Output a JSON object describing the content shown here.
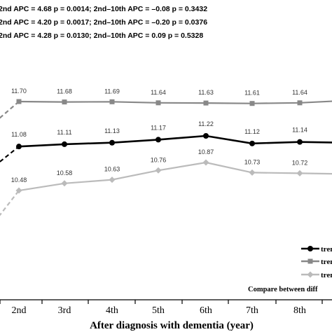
{
  "chart_data": {
    "type": "line",
    "stats_lines": [
      "2nd  APC = 4.68  p = 0.0014; 2nd–10th  APC = –0.08   p = 0.3432",
      "2nd  APC = 4.20  p = 0.0017; 2nd–10th  APC = –0.20   p = 0.0376",
      "2nd  APC = 4.28  p = 0.0130; 2nd–10th  APC = 0.09    p = 0.5328"
    ],
    "categories": [
      "2nd",
      "3rd",
      "4th",
      "5th",
      "6th",
      "7th",
      "8th"
    ],
    "xlabel": "After diagnosis with dementia (year)",
    "series": [
      {
        "name": "tren",
        "color": "#888888",
        "marker": "square",
        "values": [
          11.7,
          11.68,
          11.69,
          11.64,
          11.63,
          11.61,
          11.64
        ],
        "labels": [
          "11.70",
          "11.68",
          "11.69",
          "11.64",
          "11.63",
          "11.61",
          "11.64"
        ]
      },
      {
        "name": "tren",
        "color": "#000000",
        "marker": "circle",
        "values": [
          11.08,
          11.11,
          11.13,
          11.17,
          11.22,
          11.12,
          11.14
        ],
        "labels": [
          "11.08",
          "11.11",
          "11.13",
          "11.17",
          "11.22",
          "11.12",
          "11.14"
        ]
      },
      {
        "name": "tren",
        "color": "#bbbbbb",
        "marker": "diamond",
        "values": [
          10.48,
          10.58,
          10.63,
          10.76,
          10.87,
          10.73,
          10.72
        ],
        "labels": [
          "10.48",
          "10.58",
          "10.63",
          "10.76",
          "10.87",
          "10.73",
          "10.72"
        ]
      }
    ],
    "legend_order": [
      1,
      0,
      2
    ],
    "legend_placement": "bottom-right",
    "note": "Compare between diff",
    "grid": false
  }
}
